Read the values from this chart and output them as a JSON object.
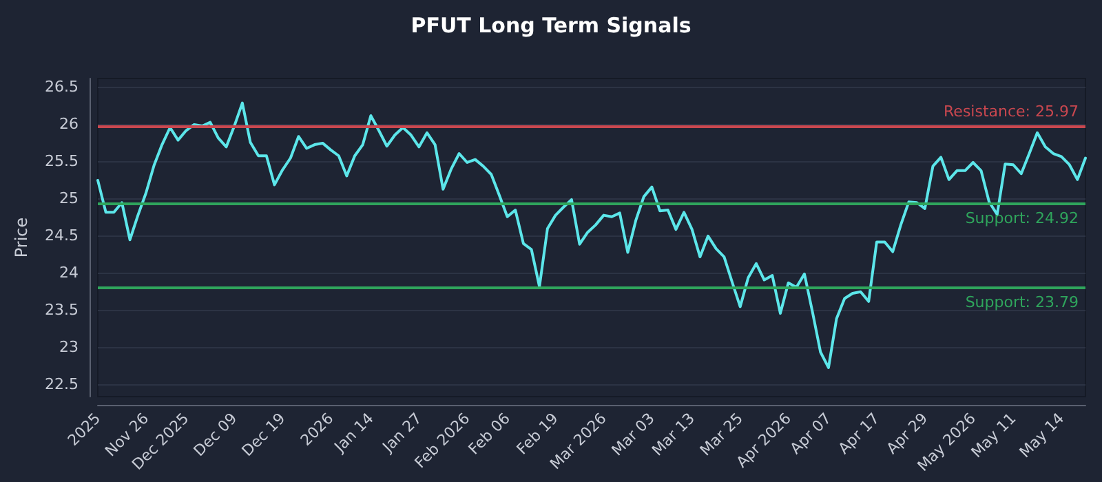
{
  "chart_data": {
    "type": "line",
    "title": "PFUT Long Term Signals",
    "ylabel": "Price",
    "categories": [
      "2025",
      null,
      null,
      null,
      null,
      null,
      "Nov 26",
      null,
      null,
      null,
      null,
      "Dec 2025",
      null,
      null,
      null,
      null,
      null,
      "Dec 09",
      null,
      null,
      null,
      null,
      null,
      "Dec 19",
      null,
      null,
      null,
      null,
      null,
      "2026",
      null,
      null,
      null,
      null,
      "Jan 14",
      null,
      null,
      null,
      null,
      null,
      "Jan 27",
      null,
      null,
      null,
      null,
      null,
      "Feb 2026",
      null,
      null,
      null,
      null,
      "Feb 06",
      null,
      null,
      null,
      null,
      null,
      "Feb 19",
      null,
      null,
      null,
      null,
      null,
      "Mar 2026",
      null,
      null,
      null,
      null,
      null,
      "Mar 03",
      null,
      null,
      null,
      null,
      "Mar 13",
      null,
      null,
      null,
      null,
      null,
      "Mar 25",
      null,
      null,
      null,
      null,
      null,
      "Apr 2026",
      null,
      null,
      null,
      null,
      "Apr 07",
      null,
      null,
      null,
      null,
      null,
      "Apr 17",
      null,
      null,
      null,
      null,
      null,
      "Apr 29",
      null,
      null,
      null,
      null,
      null,
      "May 2026",
      null,
      null,
      null,
      null,
      "May 11",
      null,
      null,
      null,
      null,
      null,
      "May 14",
      null,
      null,
      null
    ],
    "series": [
      {
        "color": "#5ce6ea",
        "values": [
          25.24,
          24.81,
          24.81,
          24.94,
          24.44,
          24.77,
          25.07,
          25.44,
          25.72,
          25.95,
          25.78,
          25.91,
          25.99,
          25.97,
          26.02,
          25.81,
          25.69,
          25.97,
          26.28,
          25.75,
          25.57,
          25.57,
          25.18,
          25.38,
          25.54,
          25.83,
          25.67,
          25.72,
          25.74,
          25.65,
          25.57,
          25.3,
          25.57,
          25.72,
          26.11,
          25.91,
          25.7,
          25.85,
          25.95,
          25.85,
          25.69,
          25.88,
          25.72,
          25.12,
          25.39,
          25.6,
          25.48,
          25.52,
          25.43,
          25.32,
          25.04,
          24.75,
          24.84,
          24.39,
          24.31,
          23.81,
          24.59,
          24.77,
          24.88,
          24.98,
          24.38,
          24.54,
          24.64,
          24.77,
          24.75,
          24.8,
          24.27,
          24.7,
          25.02,
          25.15,
          24.83,
          24.84,
          24.58,
          24.81,
          24.58,
          24.21,
          24.49,
          24.32,
          24.21,
          23.87,
          23.54,
          23.93,
          24.12,
          23.9,
          23.96,
          23.45,
          23.86,
          23.8,
          23.98,
          23.47,
          22.93,
          22.72,
          23.38,
          23.65,
          23.72,
          23.74,
          23.61,
          24.41,
          24.41,
          24.28,
          24.64,
          24.95,
          24.94,
          24.86,
          25.43,
          25.55,
          25.25,
          25.37,
          25.37,
          25.48,
          25.37,
          24.95,
          24.78,
          25.46,
          25.45,
          25.33,
          25.6,
          25.88,
          25.69,
          25.6,
          25.56,
          25.45,
          25.25,
          25.54
        ]
      }
    ],
    "ylim": [
      22.33,
      26.61
    ],
    "yticks": [
      22.5,
      23,
      23.5,
      24,
      24.5,
      25,
      25.5,
      26,
      26.5
    ],
    "grid": "y",
    "marker": "none",
    "line_style": "solid",
    "ref_lines": [
      {
        "axis": "y",
        "value": 25.97,
        "label": "Resistance: 25.97",
        "color": "#c9474f"
      },
      {
        "axis": "y",
        "value": 24.92,
        "label": "Support: 24.92",
        "color": "#2fa55c"
      },
      {
        "axis": "y",
        "value": 23.79,
        "label": "Support: 23.79",
        "color": "#2fa55c"
      }
    ]
  }
}
